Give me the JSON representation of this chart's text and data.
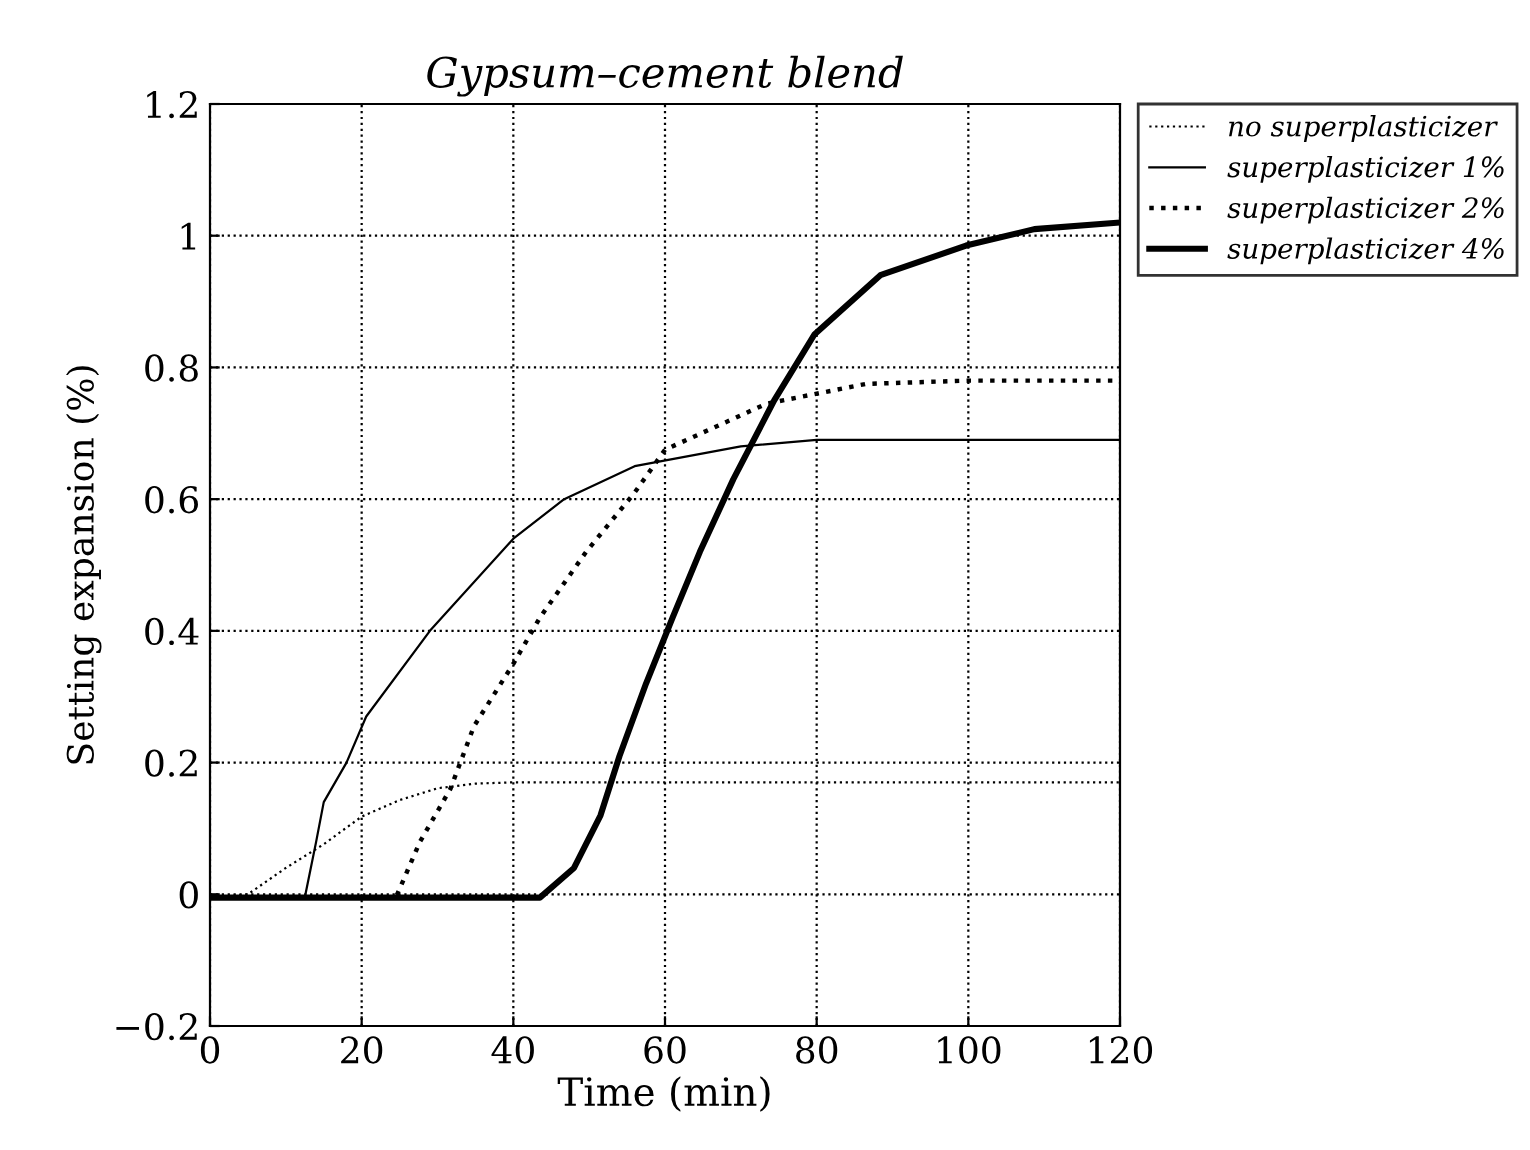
{
  "chart_data": {
    "type": "line",
    "title": "Gypsum–cement blend",
    "xlabel": "Time (min)",
    "ylabel": "Setting expansion (%)",
    "xlim": [
      0,
      120
    ],
    "ylim": [
      -0.2,
      1.2
    ],
    "xticks": [
      0,
      20,
      40,
      60,
      80,
      100,
      120
    ],
    "yticks": [
      {
        "value": -0.2,
        "label": "−0.2"
      },
      0,
      0.2,
      0.4,
      0.6,
      0.8,
      1,
      1.2
    ],
    "grid": true,
    "legend": "top right",
    "marker": "none",
    "series": [
      {
        "name": "no superplasticizer",
        "color": "#000000",
        "line_style": "dotted",
        "x": [
          0,
          5,
          10,
          15,
          20,
          25,
          30,
          35,
          40,
          60,
          80,
          100,
          120
        ],
        "values": [
          -0.005,
          0,
          0.04,
          0.076,
          0.118,
          0.143,
          0.161,
          0.168,
          0.17,
          0.17,
          0.17,
          0.17,
          0.17
        ]
      },
      {
        "name": "superplasticizer 1%",
        "color": "#000000",
        "line_style": "solid",
        "x": [
          0,
          12.5,
          14,
          15,
          18,
          20.6,
          29,
          40,
          46.7,
          56,
          70,
          80,
          100,
          120
        ],
        "values": [
          -0.005,
          -0.005,
          0.08,
          0.14,
          0.2,
          0.27,
          0.4,
          0.54,
          0.6,
          0.65,
          0.68,
          0.69,
          0.69,
          0.69
        ]
      },
      {
        "name": "superplasticizer 2%",
        "color": "#000000",
        "line_style": "dotted",
        "x": [
          0,
          24.5,
          27.7,
          31.7,
          34.8,
          40,
          43.5,
          49.6,
          56,
          60,
          73.4,
          86.5,
          100,
          120
        ],
        "values": [
          -0.005,
          -0.005,
          0.08,
          0.16,
          0.255,
          0.35,
          0.42,
          0.52,
          0.61,
          0.675,
          0.745,
          0.775,
          0.78,
          0.78
        ]
      },
      {
        "name": "superplasticizer 4%",
        "color": "#000000",
        "line_style": "solid",
        "x": [
          0,
          43.5,
          48,
          51.5,
          54,
          57.5,
          61,
          64.6,
          69,
          74.4,
          79.7,
          88.4,
          99.7,
          108.7,
          120
        ],
        "values": [
          -0.005,
          -0.005,
          0.04,
          0.12,
          0.21,
          0.32,
          0.42,
          0.52,
          0.63,
          0.75,
          0.85,
          0.94,
          0.985,
          1.01,
          1.02
        ]
      }
    ]
  }
}
